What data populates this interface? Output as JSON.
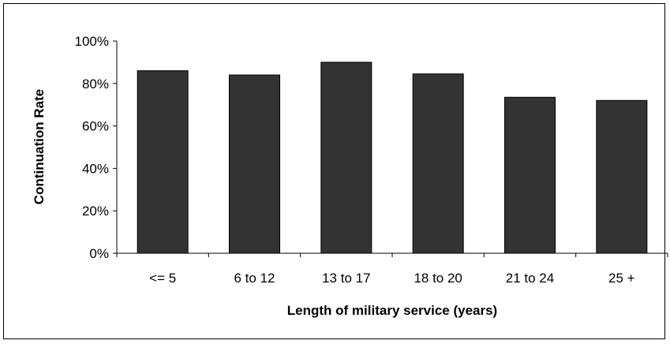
{
  "chart_data": {
    "type": "bar",
    "categories": [
      "<= 5",
      "6 to 12",
      "13 to 17",
      "18 to 20",
      "21 to 24",
      "25 +"
    ],
    "values": [
      86,
      84,
      90,
      84.5,
      73.5,
      72
    ],
    "value_unit": "%",
    "title": "",
    "xlabel": "Length of military service (years)",
    "ylabel": "Continuation Rate",
    "ylim": [
      0,
      100
    ],
    "yticks": [
      "0%",
      "20%",
      "40%",
      "60%",
      "80%",
      "100%"
    ],
    "grid": false,
    "legend": "none",
    "colors": {
      "bar": "#333333",
      "bar_outline": "#000000",
      "axis": "#000000"
    }
  }
}
